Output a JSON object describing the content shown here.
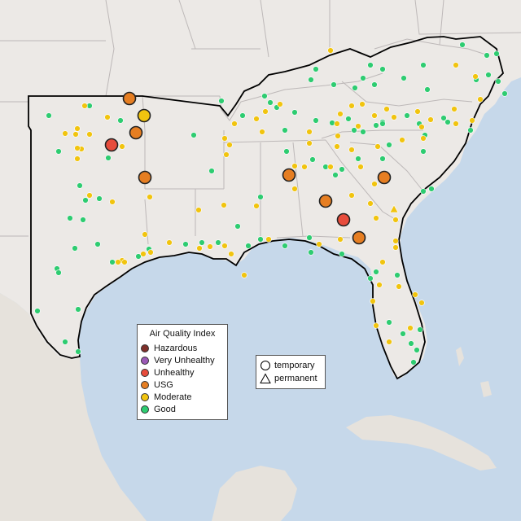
{
  "map": {
    "region": "southeastern-united-states",
    "colors": {
      "water": "#c6d8ea",
      "land": "#ece9e6",
      "land_outside": "#f1efec",
      "state_border": "#b9b4b4",
      "region_outline": "#000000"
    }
  },
  "legend": {
    "title": "Air Quality Index",
    "categories": [
      {
        "label": "Hazardous",
        "color": "#7e2f2a"
      },
      {
        "label": "Very Unhealthy",
        "color": "#9b59b6"
      },
      {
        "label": "Unhealthy",
        "color": "#e74c3c"
      },
      {
        "label": "USG",
        "color": "#e67e22"
      },
      {
        "label": "Moderate",
        "color": "#f1c40f"
      },
      {
        "label": "Good",
        "color": "#2ecc71"
      }
    ]
  },
  "shape_legend": {
    "items": [
      {
        "label": "temporary",
        "shape": "circle"
      },
      {
        "label": "permanent",
        "shape": "triangle"
      }
    ]
  },
  "monitors_summary": {
    "unhealthy_sites": 2,
    "usg_sites": 7,
    "moderate_large_sites": 1,
    "permanent_moderate_sites": 1
  }
}
